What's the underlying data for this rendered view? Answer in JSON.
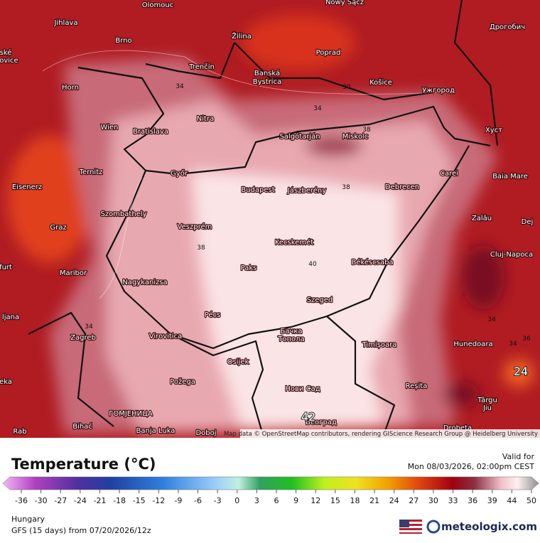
{
  "map": {
    "cities": [
      "Olomouc",
      "Nowy Sącz",
      "Jihlava",
      "Žilina",
      "Poprad",
      "Дрогобич",
      "Brno",
      "Trenčín",
      "Banská",
      "Bystrica",
      "Košice",
      "Ужгород",
      "Horn",
      "Nitra",
      "Хуст",
      "Wien",
      "Bratislava",
      "Salgótarján",
      "Miskolc",
      "Ternitz",
      "Győr",
      "Carei",
      "Baia Mare",
      "Eisenerz",
      "Budapest",
      "Jászberény",
      "Debrecen",
      "Szombathely",
      "Zalău",
      "Graz",
      "Veszprém",
      "Dej",
      "Kecskemét",
      "Cluj-Napoca",
      "Paks",
      "Békéscsaba",
      "Maribor",
      "Nagykanizsa",
      "Szeged",
      "Pécs",
      "Zagreb",
      "Virovitica",
      "Бачка",
      "Топола",
      "Timișoara",
      "Hunedoara",
      "Osijek",
      "Požega",
      "Нови Сад",
      "Reșita",
      "Târgu",
      "Jiu",
      "ГОМЈЕНИЦА",
      "Banja Luka",
      "Doboj",
      "Београд",
      "Bihać",
      "Drobeta",
      "ljana",
      "furt",
      "eka",
      "Rab",
      "ské",
      "ějovice"
    ],
    "contour_labels": [
      34,
      30,
      34,
      38,
      38,
      38,
      40,
      34,
      34,
      36,
      34,
      24,
      42
    ],
    "attribution": "Map data © OpenStreetMap contributors, rendering GIScience Research Group @ Heidelberg University"
  },
  "legend": {
    "title": "Temperature (°C)",
    "valid_label": "Valid for",
    "valid_time": "Mon 08/03/2026, 02:00pm CEST",
    "ticks": [
      -36,
      -30,
      -27,
      -24,
      -21,
      -18,
      -15,
      -12,
      -9,
      -6,
      -3,
      0,
      3,
      6,
      9,
      12,
      15,
      18,
      21,
      24,
      27,
      30,
      33,
      36,
      39,
      44,
      50
    ]
  },
  "footer": {
    "region": "Hungary",
    "model": "GFS (15 days) from 07/20/2026/12z",
    "brand": "meteologix.com"
  }
}
